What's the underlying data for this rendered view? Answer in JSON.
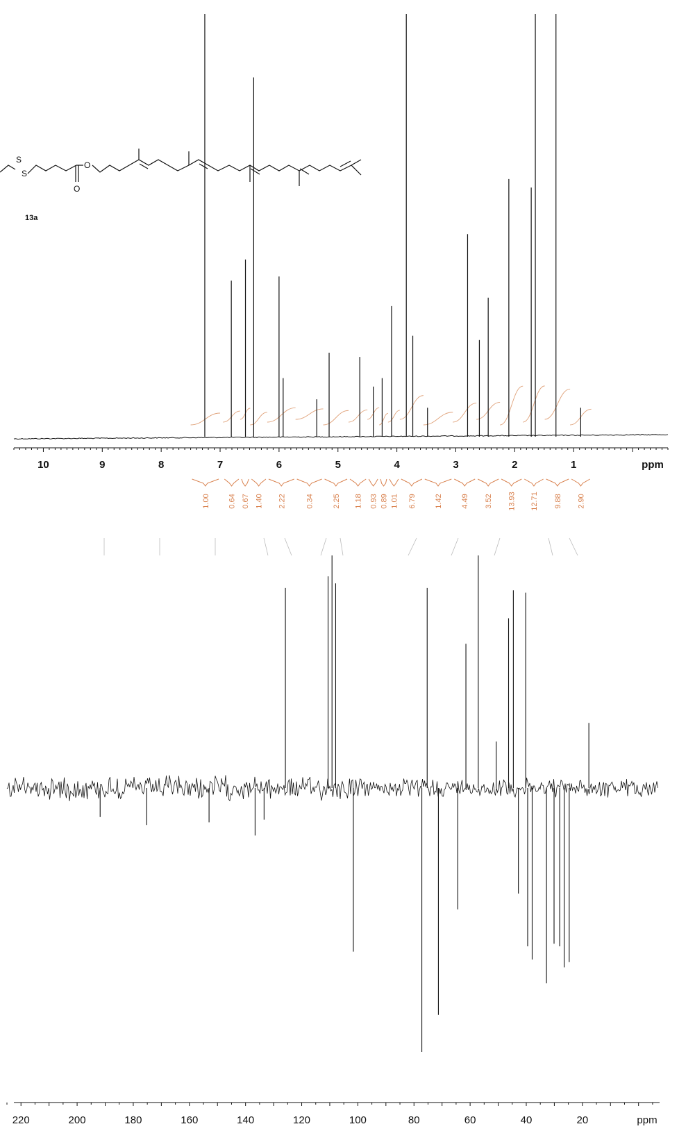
{
  "compound": {
    "label": "13a",
    "atoms": [
      "S",
      "S",
      "O",
      "O"
    ]
  },
  "chart_data": [
    {
      "type": "line",
      "nucleus": "1H",
      "title": "",
      "xlabel": "ppm",
      "ylabel": "",
      "xlim": [
        10.5,
        -0.6
      ],
      "x_reversed": true,
      "grid": false,
      "x_ticks": [
        10,
        9,
        8,
        7,
        6,
        5,
        4,
        3,
        2,
        1
      ],
      "peaks": [
        {
          "ppm": 7.26,
          "height": 1.0
        },
        {
          "ppm": 6.81,
          "height": 0.37
        },
        {
          "ppm": 6.57,
          "height": 0.42
        },
        {
          "ppm": 6.43,
          "height": 0.85
        },
        {
          "ppm": 6.0,
          "height": 0.38
        },
        {
          "ppm": 5.93,
          "height": 0.14
        },
        {
          "ppm": 5.36,
          "height": 0.09
        },
        {
          "ppm": 5.15,
          "height": 0.2
        },
        {
          "ppm": 4.63,
          "height": 0.19
        },
        {
          "ppm": 4.4,
          "height": 0.12
        },
        {
          "ppm": 4.25,
          "height": 0.14
        },
        {
          "ppm": 4.09,
          "height": 0.31
        },
        {
          "ppm": 3.84,
          "height": 1.0
        },
        {
          "ppm": 3.73,
          "height": 0.24
        },
        {
          "ppm": 3.48,
          "height": 0.07
        },
        {
          "ppm": 2.8,
          "height": 0.48
        },
        {
          "ppm": 2.6,
          "height": 0.23
        },
        {
          "ppm": 2.45,
          "height": 0.33
        },
        {
          "ppm": 2.1,
          "height": 0.61
        },
        {
          "ppm": 1.72,
          "height": 0.59
        },
        {
          "ppm": 1.65,
          "height": 1.0
        },
        {
          "ppm": 1.3,
          "height": 1.0
        },
        {
          "ppm": 0.88,
          "height": 0.07
        }
      ],
      "integrals": [
        {
          "from": 7.5,
          "to": 7.0,
          "value": "1.00"
        },
        {
          "from": 6.95,
          "to": 6.66,
          "value": "0.64"
        },
        {
          "from": 6.66,
          "to": 6.49,
          "value": "0.67"
        },
        {
          "from": 6.49,
          "to": 6.2,
          "value": "1.40"
        },
        {
          "from": 6.2,
          "to": 5.72,
          "value": "2.22"
        },
        {
          "from": 5.72,
          "to": 5.25,
          "value": "0.34"
        },
        {
          "from": 5.25,
          "to": 4.82,
          "value": "2.25"
        },
        {
          "from": 4.82,
          "to": 4.5,
          "value": "1.18"
        },
        {
          "from": 4.5,
          "to": 4.3,
          "value": "0.93"
        },
        {
          "from": 4.3,
          "to": 4.15,
          "value": "0.89"
        },
        {
          "from": 4.15,
          "to": 3.95,
          "value": "1.01"
        },
        {
          "from": 3.95,
          "to": 3.55,
          "value": "6.79"
        },
        {
          "from": 3.55,
          "to": 3.05,
          "value": "1.42"
        },
        {
          "from": 3.05,
          "to": 2.65,
          "value": "4.49"
        },
        {
          "from": 2.65,
          "to": 2.25,
          "value": "3.52"
        },
        {
          "from": 2.25,
          "to": 1.86,
          "value": "13.93"
        },
        {
          "from": 1.86,
          "to": 1.49,
          "value": "12.71"
        },
        {
          "from": 1.49,
          "to": 1.06,
          "value": "9.88"
        },
        {
          "from": 1.06,
          "to": 0.7,
          "value": "2.90"
        }
      ]
    },
    {
      "type": "line",
      "nucleus": "13C DEPT",
      "title": "",
      "xlabel": "ppm",
      "ylabel": "",
      "xlim": [
        225,
        -7
      ],
      "x_reversed": true,
      "grid": false,
      "x_ticks": [
        220,
        200,
        180,
        160,
        140,
        120,
        100,
        80,
        60,
        40,
        20
      ],
      "peaks": [
        {
          "ppm": 125.8,
          "height": 0.86
        },
        {
          "ppm": 110.6,
          "height": 0.91
        },
        {
          "ppm": 109.2,
          "height": 1.0
        },
        {
          "ppm": 107.9,
          "height": 0.88
        },
        {
          "ppm": 101.6,
          "height": -0.62
        },
        {
          "ppm": 77.2,
          "height": -1.0
        },
        {
          "ppm": 75.3,
          "height": 0.86
        },
        {
          "ppm": 71.3,
          "height": -0.86
        },
        {
          "ppm": 64.4,
          "height": -0.46
        },
        {
          "ppm": 61.5,
          "height": 0.62
        },
        {
          "ppm": 57.1,
          "height": 1.0
        },
        {
          "ppm": 50.7,
          "height": 0.2
        },
        {
          "ppm": 46.3,
          "height": 0.73
        },
        {
          "ppm": 44.6,
          "height": 0.85
        },
        {
          "ppm": 42.8,
          "height": -0.4
        },
        {
          "ppm": 40.2,
          "height": 0.84
        },
        {
          "ppm": 39.5,
          "height": -0.6
        },
        {
          "ppm": 37.9,
          "height": -0.65
        },
        {
          "ppm": 32.8,
          "height": -0.74
        },
        {
          "ppm": 30.1,
          "height": -0.59
        },
        {
          "ppm": 28.1,
          "height": -0.6
        },
        {
          "ppm": 26.5,
          "height": -0.68
        },
        {
          "ppm": 24.7,
          "height": -0.66
        },
        {
          "ppm": 17.7,
          "height": 0.28
        },
        {
          "ppm": 153.0,
          "height": -0.13
        },
        {
          "ppm": 136.6,
          "height": -0.18
        },
        {
          "ppm": 133.4,
          "height": -0.12
        },
        {
          "ppm": 175.2,
          "height": -0.14
        },
        {
          "ppm": 191.8,
          "height": -0.11
        }
      ]
    }
  ]
}
